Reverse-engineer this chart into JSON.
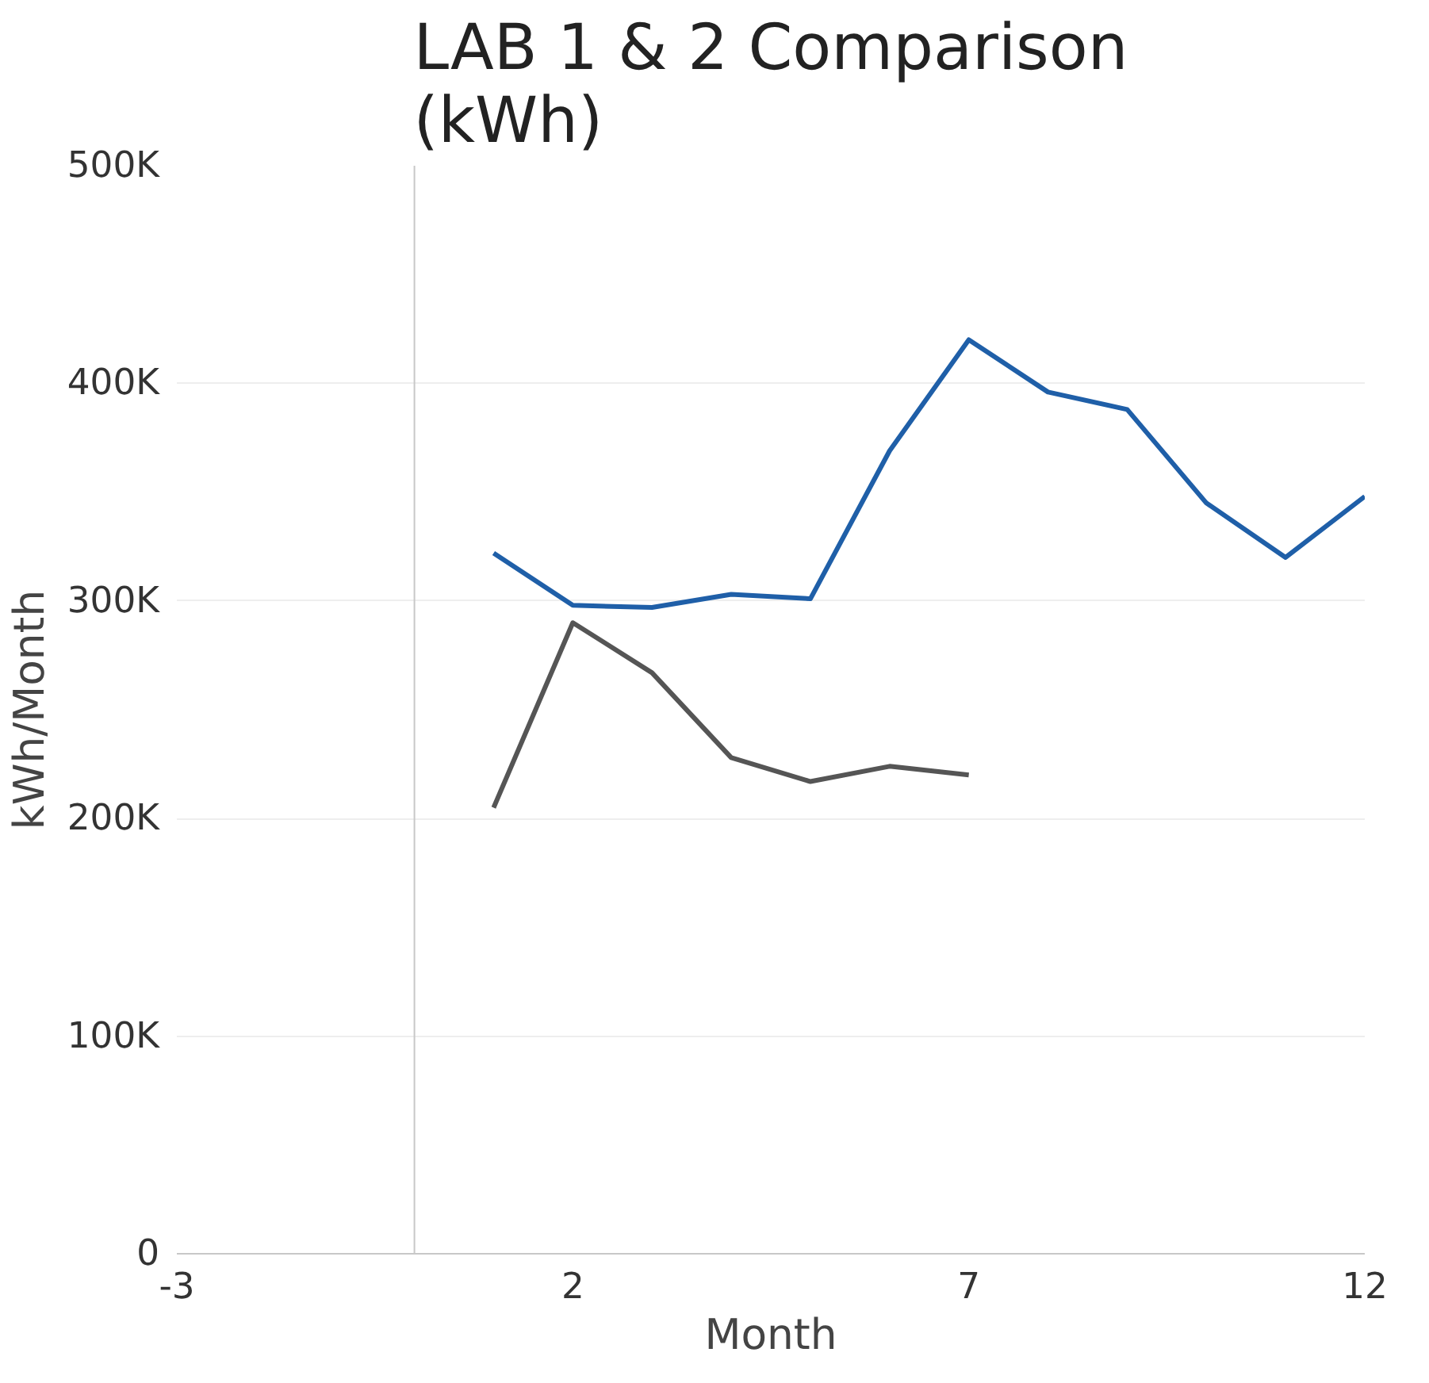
{
  "chart_data": {
    "type": "line",
    "title": "LAB 1 & 2 Comparison\n(kWh)",
    "xlabel": "Month",
    "ylabel": "kWh/Month",
    "xlim": [
      -3,
      12
    ],
    "xticks": [
      -3,
      2,
      7,
      12
    ],
    "ylim": [
      0,
      500000
    ],
    "yticks": [
      {
        "value": 0,
        "label": "0"
      },
      {
        "value": 100000,
        "label": "100K"
      },
      {
        "value": 200000,
        "label": "200K"
      },
      {
        "value": 300000,
        "label": "300K"
      },
      {
        "value": 400000,
        "label": "400K"
      },
      {
        "value": 500000,
        "label": "500K"
      }
    ],
    "grid": "y",
    "ref_lines": [
      {
        "axis": "x",
        "value": 0,
        "color": "#c8c8c8"
      }
    ],
    "series": [
      {
        "color": "#1f5fa8",
        "x": [
          1,
          2,
          3,
          4,
          5,
          6,
          7,
          8,
          9,
          10,
          11,
          12
        ],
        "values": [
          322000,
          298000,
          297000,
          303000,
          301000,
          369000,
          420000,
          396000,
          388000,
          345000,
          320000,
          348000
        ]
      },
      {
        "color": "#555555",
        "x": [
          1,
          2,
          3,
          4,
          5,
          6,
          7
        ],
        "values": [
          205000,
          290000,
          267000,
          228000,
          217000,
          224000,
          220000
        ]
      }
    ]
  }
}
